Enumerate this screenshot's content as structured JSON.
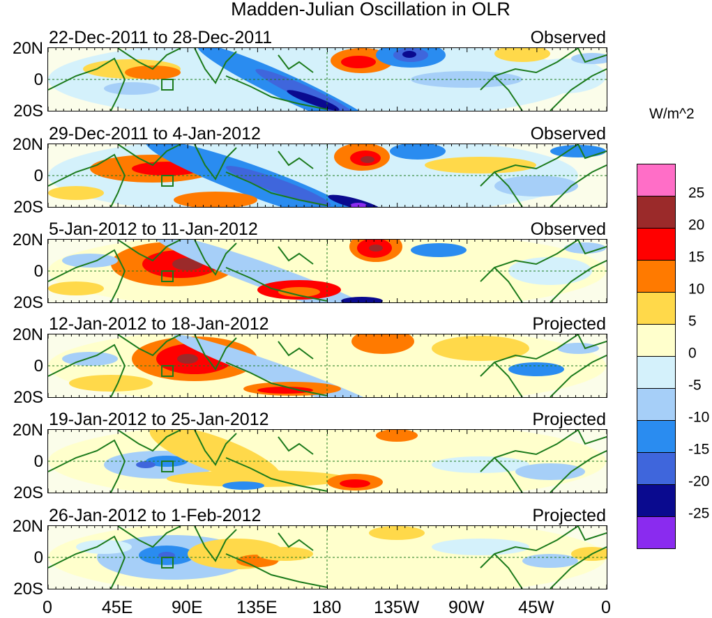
{
  "title": "Madden-Julian Oscillation in OLR",
  "panels": [
    {
      "dates": "22-Dec-2011 to 28-Dec-2011",
      "status": "Observed"
    },
    {
      "dates": "29-Dec-2011 to 4-Jan-2012",
      "status": "Observed"
    },
    {
      "dates": "5-Jan-2012 to 11-Jan-2012",
      "status": "Observed"
    },
    {
      "dates": "12-Jan-2012 to 18-Jan-2012",
      "status": "Projected"
    },
    {
      "dates": "19-Jan-2012 to 25-Jan-2012",
      "status": "Projected"
    },
    {
      "dates": "26-Jan-2012 to 1-Feb-2012",
      "status": "Projected"
    }
  ],
  "lat_labels": [
    "20N",
    "0",
    "20S"
  ],
  "lon_labels": [
    "0",
    "45E",
    "90E",
    "135E",
    "180",
    "135W",
    "90W",
    "45W",
    "0"
  ],
  "colorbar": {
    "units": "W/m^2",
    "ticks": [
      "25",
      "20",
      "15",
      "10",
      "5",
      "0",
      "-5",
      "-10",
      "-15",
      "-20",
      "-25"
    ],
    "colors": [
      "#ff6ec7",
      "#9b2a2a",
      "#ff0000",
      "#ff7a00",
      "#ffd94a",
      "#ffffcc",
      "#d4f1fb",
      "#a6cff8",
      "#2a8cf0",
      "#3f66dc",
      "#0a0a8f",
      "#8a2bef"
    ]
  }
}
